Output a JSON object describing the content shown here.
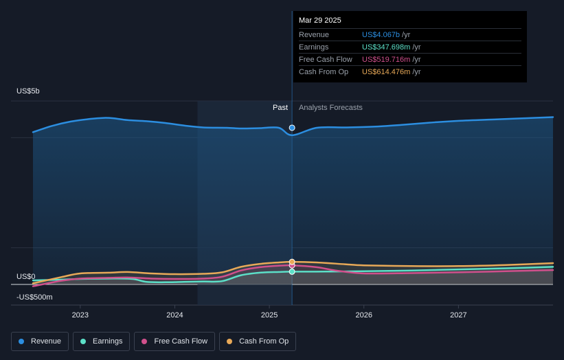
{
  "chart_data": {
    "type": "line",
    "title": "",
    "y_axis": {
      "max_label": "US$5b",
      "zero_label": "US$0",
      "min_label": "-US$500m",
      "ylim": [
        -500,
        5000
      ],
      "unit": "US$ millions"
    },
    "x_axis": {
      "ticks": [
        "2023",
        "2024",
        "2025",
        "2026",
        "2027"
      ],
      "xlim": [
        2022.5,
        2028.0
      ]
    },
    "regions": {
      "past_label": "Past",
      "forecast_label": "Analysts Forecasts",
      "divider_x": 2025.24,
      "highlight_start_x": 2024.24
    },
    "grid": true,
    "legend_position": "bottom-left",
    "series": [
      {
        "name": "Revenue",
        "color": "#2c8ee0",
        "x": [
          2022.5,
          2022.7,
          2022.9,
          2023.1,
          2023.25,
          2023.35,
          2023.5,
          2023.7,
          2023.9,
          2024.1,
          2024.3,
          2024.55,
          2024.7,
          2024.9,
          2025.1,
          2025.24,
          2025.5,
          2025.8,
          2026.1,
          2026.4,
          2026.7,
          2027.0,
          2027.4,
          2027.7,
          2028.0
        ],
        "values": [
          4150,
          4320,
          4440,
          4510,
          4540,
          4530,
          4480,
          4450,
          4400,
          4330,
          4280,
          4270,
          4250,
          4260,
          4270,
          4067,
          4270,
          4280,
          4300,
          4350,
          4410,
          4460,
          4500,
          4530,
          4560
        ]
      },
      {
        "name": "Earnings",
        "color": "#5ce0c8",
        "x": [
          2022.5,
          2022.8,
          2023.0,
          2023.3,
          2023.55,
          2023.7,
          2023.9,
          2024.1,
          2024.3,
          2024.5,
          2024.7,
          2024.9,
          2025.1,
          2025.24,
          2025.6,
          2026.0,
          2026.5,
          2027.0,
          2027.5,
          2028.0
        ],
        "values": [
          110,
          130,
          150,
          160,
          150,
          70,
          60,
          70,
          80,
          90,
          250,
          320,
          340,
          347.698,
          350,
          360,
          380,
          410,
          440,
          480
        ]
      },
      {
        "name": "Free Cash Flow",
        "color": "#d0508c",
        "x": [
          2022.5,
          2022.8,
          2023.0,
          2023.3,
          2023.5,
          2023.75,
          2024.0,
          2024.3,
          2024.5,
          2024.7,
          2024.9,
          2025.1,
          2025.24,
          2025.5,
          2025.7,
          2026.0,
          2026.5,
          2027.0,
          2027.5,
          2028.0
        ],
        "values": [
          -50,
          100,
          160,
          180,
          190,
          160,
          150,
          160,
          210,
          380,
          470,
          510,
          519.716,
          470,
          380,
          300,
          310,
          330,
          360,
          390
        ]
      },
      {
        "name": "Cash From Op",
        "color": "#e8a958",
        "x": [
          2022.5,
          2022.8,
          2023.0,
          2023.3,
          2023.5,
          2023.75,
          2024.0,
          2024.3,
          2024.5,
          2024.7,
          2024.9,
          2025.1,
          2025.24,
          2025.5,
          2025.8,
          2026.0,
          2026.5,
          2027.0,
          2027.5,
          2028.0
        ],
        "values": [
          30,
          200,
          300,
          320,
          340,
          300,
          280,
          290,
          330,
          480,
          560,
          600,
          614.476,
          600,
          550,
          520,
          500,
          500,
          530,
          580
        ]
      }
    ]
  },
  "tooltip": {
    "date": "Mar 29 2025",
    "rows": [
      {
        "name": "Revenue",
        "value": "US$4.067b",
        "unit": "/yr",
        "color": "#2c8ee0"
      },
      {
        "name": "Earnings",
        "value": "US$347.698m",
        "unit": "/yr",
        "color": "#5ce0c8"
      },
      {
        "name": "Free Cash Flow",
        "value": "US$519.716m",
        "unit": "/yr",
        "color": "#d0508c"
      },
      {
        "name": "Cash From Op",
        "value": "US$614.476m",
        "unit": "/yr",
        "color": "#e8a958"
      }
    ]
  },
  "legend": [
    {
      "label": "Revenue",
      "color": "#2c8ee0"
    },
    {
      "label": "Earnings",
      "color": "#5ce0c8"
    },
    {
      "label": "Free Cash Flow",
      "color": "#d0508c"
    },
    {
      "label": "Cash From Op",
      "color": "#e8a958"
    }
  ]
}
